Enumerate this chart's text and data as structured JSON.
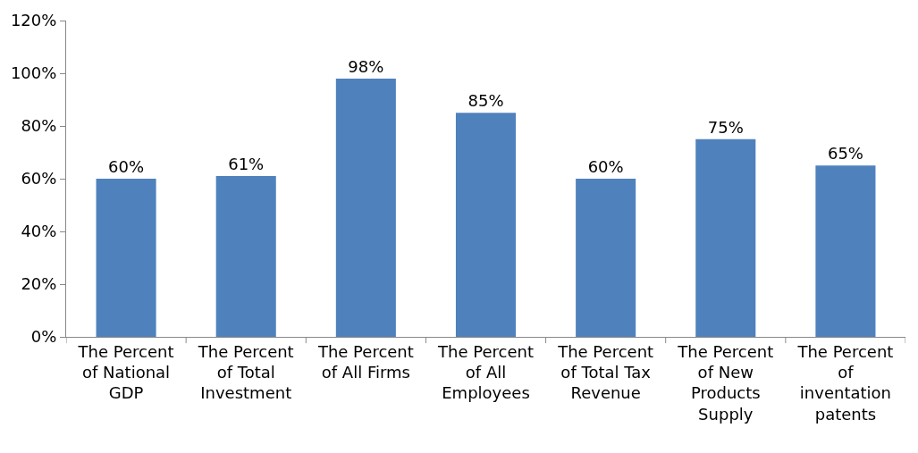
{
  "chart_data": {
    "type": "bar",
    "categories": [
      "The Percent of National GDP",
      "The Percent of Total Investment",
      "The Percent of All Firms",
      "The Percent of All Employees",
      "The Percent of Total Tax Revenue",
      "The Percent of New Products Supply",
      "The Percent of inventation patents"
    ],
    "values": [
      60,
      61,
      98,
      85,
      60,
      75,
      65
    ],
    "value_labels": [
      "60%",
      "61%",
      "98%",
      "85%",
      "60%",
      "75%",
      "65%"
    ],
    "color": "#4f81bd",
    "ylim": [
      0,
      120
    ],
    "yticks": [
      {
        "value": 0,
        "label": "0%"
      },
      {
        "value": 20,
        "label": "20%"
      },
      {
        "value": 40,
        "label": "40%"
      },
      {
        "value": 60,
        "label": "60%"
      },
      {
        "value": 80,
        "label": "80%"
      },
      {
        "value": 100,
        "label": "100%"
      },
      {
        "value": 120,
        "label": "120%"
      }
    ],
    "legend": false
  }
}
